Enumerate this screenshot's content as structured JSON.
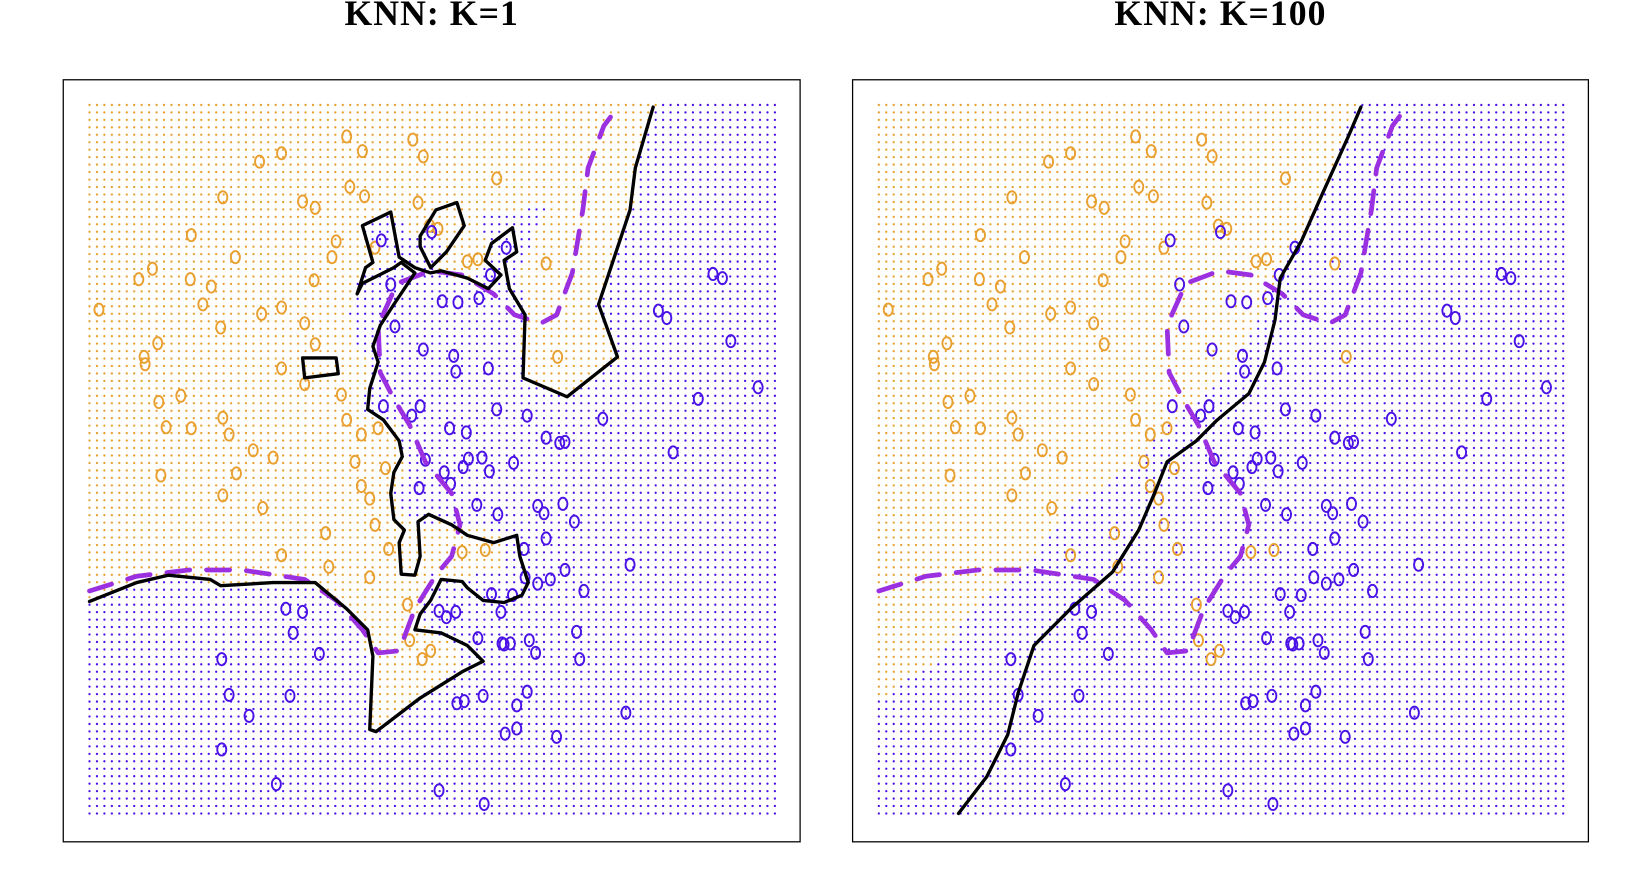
{
  "chart_data": [
    {
      "type": "scatter",
      "title": "KNN: K=1",
      "k": 1,
      "xlim": [
        60,
        762
      ],
      "ylim": [
        802,
        76
      ],
      "series": [
        {
          "color": "#e8a030",
          "x": [
            94,
            137,
            138,
            150,
            145,
            132,
            182,
            181,
            201,
            193,
            210,
            224,
            212,
            247,
            268,
            330,
            345,
            393,
            403,
            333,
            347,
            288,
            300,
            320,
            316,
            299,
            249,
            268,
            290,
            300,
            268,
            290,
            325,
            330,
            344,
            360,
            367,
            338,
            344,
            352,
            357,
            370,
            352,
            310,
            268,
            250,
            212,
            225,
            241,
            260,
            218,
            212,
            182,
            158,
            151,
            172,
            153,
            313,
            388,
            402,
            410,
            440,
            473,
            445,
            455,
            520,
            531,
            409,
            417,
            398,
            357,
            462,
            390
          ],
          "y": [
            295,
            340,
            347,
            327,
            256,
            266,
            224,
            266,
            273,
            290,
            312,
            245,
            188,
            154,
            146,
            130,
            144,
            133,
            149,
            178,
            187,
            192,
            198,
            230,
            245,
            267,
            299,
            293,
            308,
            328,
            351,
            366,
            376,
            400,
            414,
            408,
            446,
            440,
            463,
            475,
            500,
            523,
            550,
            508,
            529,
            484,
            472,
            451,
            429,
            436,
            414,
            398,
            408,
            407,
            383,
            377,
            453,
            540,
            576,
            628,
            620,
            526,
            170,
            249,
            247,
            251,
            340,
            215,
            218,
            193,
            236,
            524,
            610
          ]
        },
        {
          "color": "#4b12e6",
          "x": [
            363,
            372,
            421,
            436,
            456,
            467,
            411,
            482,
            376,
            403,
            432,
            434,
            465,
            365,
            400,
            392,
            428,
            444,
            473,
            502,
            520,
            533,
            538,
            574,
            641,
            665,
            722,
            696,
            627,
            635,
            679,
            688,
            405,
            423,
            441,
            446,
            459,
            489,
            466,
            399,
            429,
            454,
            474,
            512,
            518,
            536,
            547,
            520,
            499,
            434,
            418,
            425,
            468,
            477,
            488,
            500,
            512,
            524,
            538,
            556,
            600,
            549,
            272,
            288,
            279,
            304,
            211,
            218,
            276,
            237,
            211,
            263,
            418,
            461,
            455,
            478,
            486,
            504,
            510,
            552,
            502,
            492,
            460,
            435,
            442,
            481,
            492,
            530,
            596,
            480
          ],
          "y": [
            229,
            271,
            287,
            288,
            284,
            262,
            221,
            236,
            311,
            333,
            339,
            354,
            351,
            387,
            387,
            396,
            408,
            412,
            390,
            396,
            417,
            422,
            421,
            399,
            431,
            380,
            369,
            325,
            296,
            303,
            261,
            265,
            438,
            450,
            445,
            437,
            436,
            441,
            449,
            465,
            461,
            481,
            490,
            482,
            489,
            480,
            497,
            513,
            523,
            583,
            582,
            588,
            566,
            583,
            567,
            550,
            556,
            552,
            543,
            563,
            538,
            602,
            580,
            583,
            603,
            623,
            628,
            662,
            663,
            682,
            714,
            747,
            753,
            766,
            608,
            613,
            613,
            610,
            622,
            628,
            659,
            672,
            663,
            670,
            668,
            699,
            694,
            702,
            679,
            614
          ]
        }
      ],
      "lines": [
        {
          "color": "#9b30e0",
          "dashed": true,
          "x": [
            85,
            130,
            180,
            230,
            290,
            320,
            345,
            360,
            380,
            395,
            415,
            430,
            438,
            430,
            405,
            390,
            375,
            362,
            360,
            378,
            410,
            440,
            470,
            490,
            515,
            530,
            545,
            555,
            560,
            575,
            590
          ],
          "y": [
            563,
            549,
            543,
            543,
            552,
            572,
            600,
            622,
            620,
            580,
            548,
            530,
            500,
            470,
            440,
            405,
            380,
            355,
            310,
            270,
            258,
            262,
            280,
            300,
            308,
            300,
            260,
            200,
            160,
            120,
            100
          ]
        },
        {
          "color": "#000000",
          "dashed": false,
          "x": [
            85,
            130,
            160,
            200,
            210,
            260,
            300,
            330,
            350,
            355,
            352,
            358,
            400,
            440,
            460,
            445,
            420,
            395,
            400,
            410,
            420,
            440,
            445,
            460,
            480,
            497,
            503,
            495,
            492,
            470,
            445,
            430,
            408,
            398,
            400,
            395,
            382,
            380,
            385,
            375,
            372,
            375,
            383,
            380,
            365,
            350,
            352,
            360,
            355,
            362,
            375,
            395,
            382,
            375,
            365,
            345,
            340,
            348,
            355,
            345,
            372,
            380,
            395,
            410,
            420,
            445,
            465,
            477,
            462,
            468,
            488,
            492,
            480,
            485,
            500,
            498,
            540,
            588,
            570,
            600,
            605,
            622
          ],
          "y": [
            573,
            555,
            548,
            552,
            558,
            555,
            555,
            580,
            600,
            625,
            695,
            697,
            665,
            640,
            630,
            615,
            603,
            600,
            585,
            572,
            552,
            554,
            560,
            572,
            574,
            567,
            555,
            530,
            510,
            517,
            510,
            500,
            490,
            497,
            530,
            548,
            547,
            517,
            505,
            495,
            470,
            450,
            435,
            420,
            400,
            390,
            370,
            345,
            330,
            310,
            290,
            260,
            250,
            255,
            260,
            270,
            280,
            255,
            250,
            215,
            202,
            245,
            255,
            260,
            258,
            265,
            275,
            262,
            248,
            232,
            217,
            240,
            248,
            275,
            300,
            360,
            378,
            340,
            290,
            200,
            160,
            102
          ]
        },
        {
          "color": "#000000",
          "dashed": false,
          "x": [
            400,
            415,
            435,
            442,
            425,
            410,
            400,
            400
          ],
          "y": [
            225,
            200,
            193,
            215,
            240,
            255,
            235,
            225
          ]
        },
        {
          "color": "#000000",
          "dashed": false,
          "x": [
            288,
            320,
            322,
            290,
            288
          ],
          "y": [
            341,
            341,
            356,
            360,
            341
          ]
        }
      ]
    },
    {
      "type": "scatter",
      "title": "KNN: K=100",
      "k": 100,
      "xlim": [
        60,
        762
      ],
      "ylim": [
        802,
        76
      ],
      "series": [
        {
          "color": "#e8a030",
          "x": [
            94,
            137,
            138,
            150,
            145,
            132,
            182,
            181,
            201,
            193,
            210,
            224,
            212,
            247,
            268,
            330,
            345,
            393,
            403,
            333,
            347,
            288,
            300,
            320,
            316,
            299,
            249,
            268,
            290,
            300,
            268,
            290,
            325,
            330,
            344,
            360,
            367,
            338,
            344,
            352,
            357,
            370,
            352,
            310,
            268,
            250,
            212,
            225,
            241,
            260,
            218,
            212,
            182,
            158,
            151,
            172,
            153,
            313,
            388,
            402,
            410,
            440,
            473,
            445,
            455,
            520,
            531,
            409,
            417,
            398,
            357,
            462,
            390
          ],
          "y": [
            295,
            340,
            347,
            327,
            256,
            266,
            224,
            266,
            273,
            290,
            312,
            245,
            188,
            154,
            146,
            130,
            144,
            133,
            149,
            178,
            187,
            192,
            198,
            230,
            245,
            267,
            299,
            293,
            308,
            328,
            351,
            366,
            376,
            400,
            414,
            408,
            446,
            440,
            463,
            475,
            500,
            523,
            550,
            508,
            529,
            484,
            472,
            451,
            429,
            436,
            414,
            398,
            408,
            407,
            383,
            377,
            453,
            540,
            576,
            628,
            620,
            526,
            170,
            249,
            247,
            251,
            340,
            215,
            218,
            193,
            236,
            524,
            610
          ]
        },
        {
          "color": "#4b12e6",
          "x": [
            363,
            372,
            421,
            436,
            456,
            467,
            411,
            482,
            376,
            403,
            432,
            434,
            465,
            365,
            400,
            392,
            428,
            444,
            473,
            502,
            520,
            533,
            538,
            574,
            641,
            665,
            722,
            696,
            627,
            635,
            679,
            688,
            405,
            423,
            441,
            446,
            459,
            489,
            466,
            399,
            429,
            454,
            474,
            512,
            518,
            536,
            547,
            520,
            499,
            434,
            418,
            425,
            468,
            477,
            488,
            500,
            512,
            524,
            538,
            556,
            600,
            549,
            272,
            288,
            279,
            304,
            211,
            218,
            276,
            237,
            211,
            263,
            418,
            461,
            455,
            478,
            486,
            504,
            510,
            552,
            502,
            492,
            460,
            435,
            442,
            481,
            492,
            530,
            596,
            480
          ],
          "y": [
            229,
            271,
            287,
            288,
            284,
            262,
            221,
            236,
            311,
            333,
            339,
            354,
            351,
            387,
            387,
            396,
            408,
            412,
            390,
            396,
            417,
            422,
            421,
            399,
            431,
            380,
            369,
            325,
            296,
            303,
            261,
            265,
            438,
            450,
            445,
            437,
            436,
            441,
            449,
            465,
            461,
            481,
            490,
            482,
            489,
            480,
            497,
            513,
            523,
            583,
            582,
            588,
            566,
            583,
            567,
            550,
            556,
            552,
            543,
            563,
            538,
            602,
            580,
            583,
            603,
            623,
            628,
            662,
            663,
            682,
            714,
            747,
            753,
            766,
            608,
            613,
            613,
            610,
            622,
            628,
            659,
            672,
            663,
            670,
            668,
            699,
            694,
            702,
            679,
            614
          ]
        }
      ],
      "lines": [
        {
          "color": "#9b30e0",
          "dashed": true,
          "x": [
            85,
            130,
            180,
            230,
            290,
            320,
            345,
            360,
            380,
            395,
            415,
            430,
            438,
            430,
            405,
            390,
            375,
            362,
            360,
            378,
            410,
            440,
            470,
            490,
            515,
            530,
            545,
            555,
            560,
            575,
            590
          ],
          "y": [
            563,
            549,
            543,
            543,
            552,
            572,
            600,
            622,
            620,
            580,
            548,
            530,
            500,
            470,
            440,
            405,
            380,
            355,
            310,
            270,
            258,
            262,
            280,
            300,
            308,
            300,
            260,
            200,
            160,
            120,
            100
          ]
        },
        {
          "color": "#000000",
          "dashed": false,
          "x": [
            161,
            188,
            208,
            218,
            233,
            268,
            308,
            333,
            348,
            360,
            388,
            408,
            438,
            453,
            463,
            468,
            488,
            508,
            533,
            545
          ],
          "y": [
            775,
            740,
            700,
            660,
            615,
            580,
            545,
            505,
            470,
            440,
            420,
            400,
            375,
            345,
            305,
            265,
            230,
            185,
            130,
            102
          ]
        }
      ]
    }
  ]
}
